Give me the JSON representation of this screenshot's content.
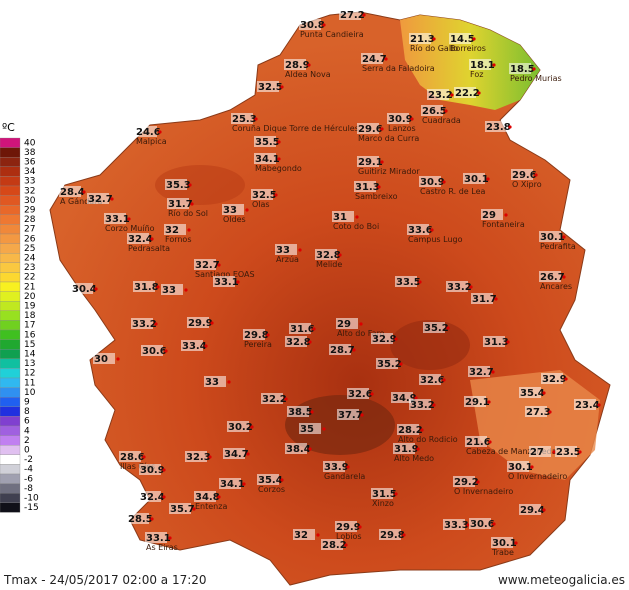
{
  "legend": {
    "unit": "ºC",
    "entries": [
      {
        "value": 40,
        "color": "#d0147a"
      },
      {
        "value": 38,
        "color": "#6e1608"
      },
      {
        "value": 36,
        "color": "#8c2410"
      },
      {
        "value": 34,
        "color": "#ad2e10"
      },
      {
        "value": 33,
        "color": "#c43a14"
      },
      {
        "value": 32,
        "color": "#d64818"
      },
      {
        "value": 30,
        "color": "#e05822"
      },
      {
        "value": 29,
        "color": "#e8682a"
      },
      {
        "value": 28,
        "color": "#ee7832"
      },
      {
        "value": 27,
        "color": "#f0883a"
      },
      {
        "value": 26,
        "color": "#f39842"
      },
      {
        "value": 25,
        "color": "#f5a84a"
      },
      {
        "value": 24,
        "color": "#f8b848"
      },
      {
        "value": 23,
        "color": "#fac840"
      },
      {
        "value": 22,
        "color": "#fcd830"
      },
      {
        "value": 21,
        "color": "#f8f020"
      },
      {
        "value": 20,
        "color": "#e0f020"
      },
      {
        "value": 19,
        "color": "#c0e820"
      },
      {
        "value": 18,
        "color": "#98e020"
      },
      {
        "value": 17,
        "color": "#70d020"
      },
      {
        "value": 16,
        "color": "#40c020"
      },
      {
        "value": 15,
        "color": "#20a830"
      },
      {
        "value": 14,
        "color": "#10a050"
      },
      {
        "value": 13,
        "color": "#10c0a0"
      },
      {
        "value": 12,
        "color": "#20d0d8"
      },
      {
        "value": 11,
        "color": "#30b8f0"
      },
      {
        "value": 10,
        "color": "#3090f0"
      },
      {
        "value": 9,
        "color": "#2060f0"
      },
      {
        "value": 8,
        "color": "#2030e0"
      },
      {
        "value": 6,
        "color": "#8040d0"
      },
      {
        "value": 4,
        "color": "#a060e0"
      },
      {
        "value": 2,
        "color": "#c080f0"
      },
      {
        "value": 0,
        "color": "#e0c0f0"
      },
      {
        "value": -2,
        "color": "#ffffff"
      },
      {
        "value": -4,
        "color": "#d0d0d8"
      },
      {
        "value": -6,
        "color": "#a0a0b0"
      },
      {
        "value": -8,
        "color": "#707080"
      },
      {
        "value": -10,
        "color": "#404050"
      },
      {
        "value": -15,
        "color": "#101018"
      }
    ]
  },
  "stations": [
    {
      "temp": 30.8,
      "name": "Punta Candieira"
    },
    {
      "temp": 27.2
    },
    {
      "temp": 21.3,
      "name": "Río do Gallo"
    },
    {
      "temp": 14.5,
      "name": "Borreiros"
    },
    {
      "temp": 18.1,
      "name": "Foz"
    },
    {
      "temp": 18.5,
      "name": "Pedro Murias"
    },
    {
      "temp": 24.7,
      "name": "Serra da Faladoira"
    },
    {
      "temp": 28.9,
      "name": "Aldea Nova"
    },
    {
      "temp": 32.5
    },
    {
      "temp": 25.3,
      "name": "Coruña Dique Torre de Hércules"
    },
    {
      "temp": 24.6,
      "name": "Malpica"
    },
    {
      "temp": 29.6,
      "name": "Marco da Curra"
    },
    {
      "temp": 30.9,
      "name": "Lanzos"
    },
    {
      "temp": 26.5,
      "name": "Cuadrada"
    },
    {
      "temp": 23.2
    },
    {
      "temp": 22.2
    },
    {
      "temp": 23.8
    },
    {
      "temp": 35.5
    },
    {
      "temp": 34.1,
      "name": "Mabegondo"
    },
    {
      "temp": 29.1,
      "name": "Guitiriz Mirador"
    },
    {
      "temp": 31.3,
      "name": "Sambreixo"
    },
    {
      "temp": 30.9,
      "name": "Castro R. de Lea"
    },
    {
      "temp": 30.1
    },
    {
      "temp": 29.6,
      "name": "O Xipro"
    },
    {
      "temp": 28.4,
      "name": "A Gándara"
    },
    {
      "temp": 32.7
    },
    {
      "temp": 35.3
    },
    {
      "temp": 31.7,
      "name": "Río do Sol"
    },
    {
      "temp": 32.5,
      "name": "Olas"
    },
    {
      "temp": 33.0,
      "name": "Oldes"
    },
    {
      "temp": 31.0,
      "name": "Coto do Boi"
    },
    {
      "temp": 33.6,
      "name": "Campus Lugo"
    },
    {
      "temp": 29.0,
      "name": "Fontaneira"
    },
    {
      "temp": 33.1,
      "name": "Corzo Muíño"
    },
    {
      "temp": 32.0,
      "name": "Fornos"
    },
    {
      "temp": 32.4,
      "name": "Pedrasalta"
    },
    {
      "temp": 30.1,
      "name": "Pedrafita"
    },
    {
      "temp": 33.0,
      "name": "Arzúa"
    },
    {
      "temp": 32.8,
      "name": "Melide"
    },
    {
      "temp": 32.7,
      "name": "Santiago EOAS"
    },
    {
      "temp": 26.7,
      "name": "Ancares"
    },
    {
      "temp": 30.4
    },
    {
      "temp": 31.8
    },
    {
      "temp": 33.0
    },
    {
      "temp": 33.1
    },
    {
      "temp": 33.5
    },
    {
      "temp": 33.2
    },
    {
      "temp": 31.7
    },
    {
      "temp": 33.2
    },
    {
      "temp": 29.9
    },
    {
      "temp": 29.8,
      "name": "Pereira"
    },
    {
      "temp": 31.6
    },
    {
      "temp": 29.0,
      "name": "Alto do Faro"
    },
    {
      "temp": 35.2
    },
    {
      "temp": 31.3
    },
    {
      "temp": 30.0
    },
    {
      "temp": 30.6
    },
    {
      "temp": 33.4
    },
    {
      "temp": 32.8
    },
    {
      "temp": 28.7
    },
    {
      "temp": 32.9
    },
    {
      "temp": 35.2
    },
    {
      "temp": 33.0
    },
    {
      "temp": 32.6
    },
    {
      "temp": 32.7
    },
    {
      "temp": 32.9
    },
    {
      "temp": 32.2
    },
    {
      "temp": 38.5
    },
    {
      "temp": 37.7
    },
    {
      "temp": 32.6
    },
    {
      "temp": 34.9
    },
    {
      "temp": 33.2
    },
    {
      "temp": 29.1
    },
    {
      "temp": 35.4
    },
    {
      "temp": 27.3
    },
    {
      "temp": 23.4
    },
    {
      "temp": 30.2
    },
    {
      "temp": 35.0
    },
    {
      "temp": 28.2,
      "name": "Alto do Rodicio"
    },
    {
      "temp": 21.6,
      "name": "Cabeza de Manzaneda"
    },
    {
      "temp": 28.6,
      "name": "Illas Cíes"
    },
    {
      "temp": 34.7
    },
    {
      "temp": 38.4
    },
    {
      "temp": 31.9,
      "name": "Alto Medo"
    },
    {
      "temp": 27.0
    },
    {
      "temp": 23.5
    },
    {
      "temp": 30.9
    },
    {
      "temp": 32.3
    },
    {
      "temp": 33.9,
      "name": "Gandarela"
    },
    {
      "temp": 30.1,
      "name": "O Invernadeiro"
    },
    {
      "temp": 34.1
    },
    {
      "temp": 35.4,
      "name": "Corzos"
    },
    {
      "temp": 29.2,
      "name": "O Invernadeiro"
    },
    {
      "temp": 32.4
    },
    {
      "temp": 34.8,
      "name": "Entenza"
    },
    {
      "temp": 35.7
    },
    {
      "temp": 31.5,
      "name": "Xinzo"
    },
    {
      "temp": 28.5
    },
    {
      "temp": 29.4
    },
    {
      "temp": 33.1,
      "name": "As Eiras"
    },
    {
      "temp": 32.0
    },
    {
      "temp": 29.9,
      "name": "Lobios"
    },
    {
      "temp": 29.8
    },
    {
      "temp": 33.3
    },
    {
      "temp": 30.6
    },
    {
      "temp": 28.2
    },
    {
      "temp": 30.1,
      "name": "Trabe"
    }
  ],
  "footer": {
    "caption": "Tmax - 24/05/2017 02:00 a 17:20",
    "site": "www.meteogalicia.es"
  }
}
